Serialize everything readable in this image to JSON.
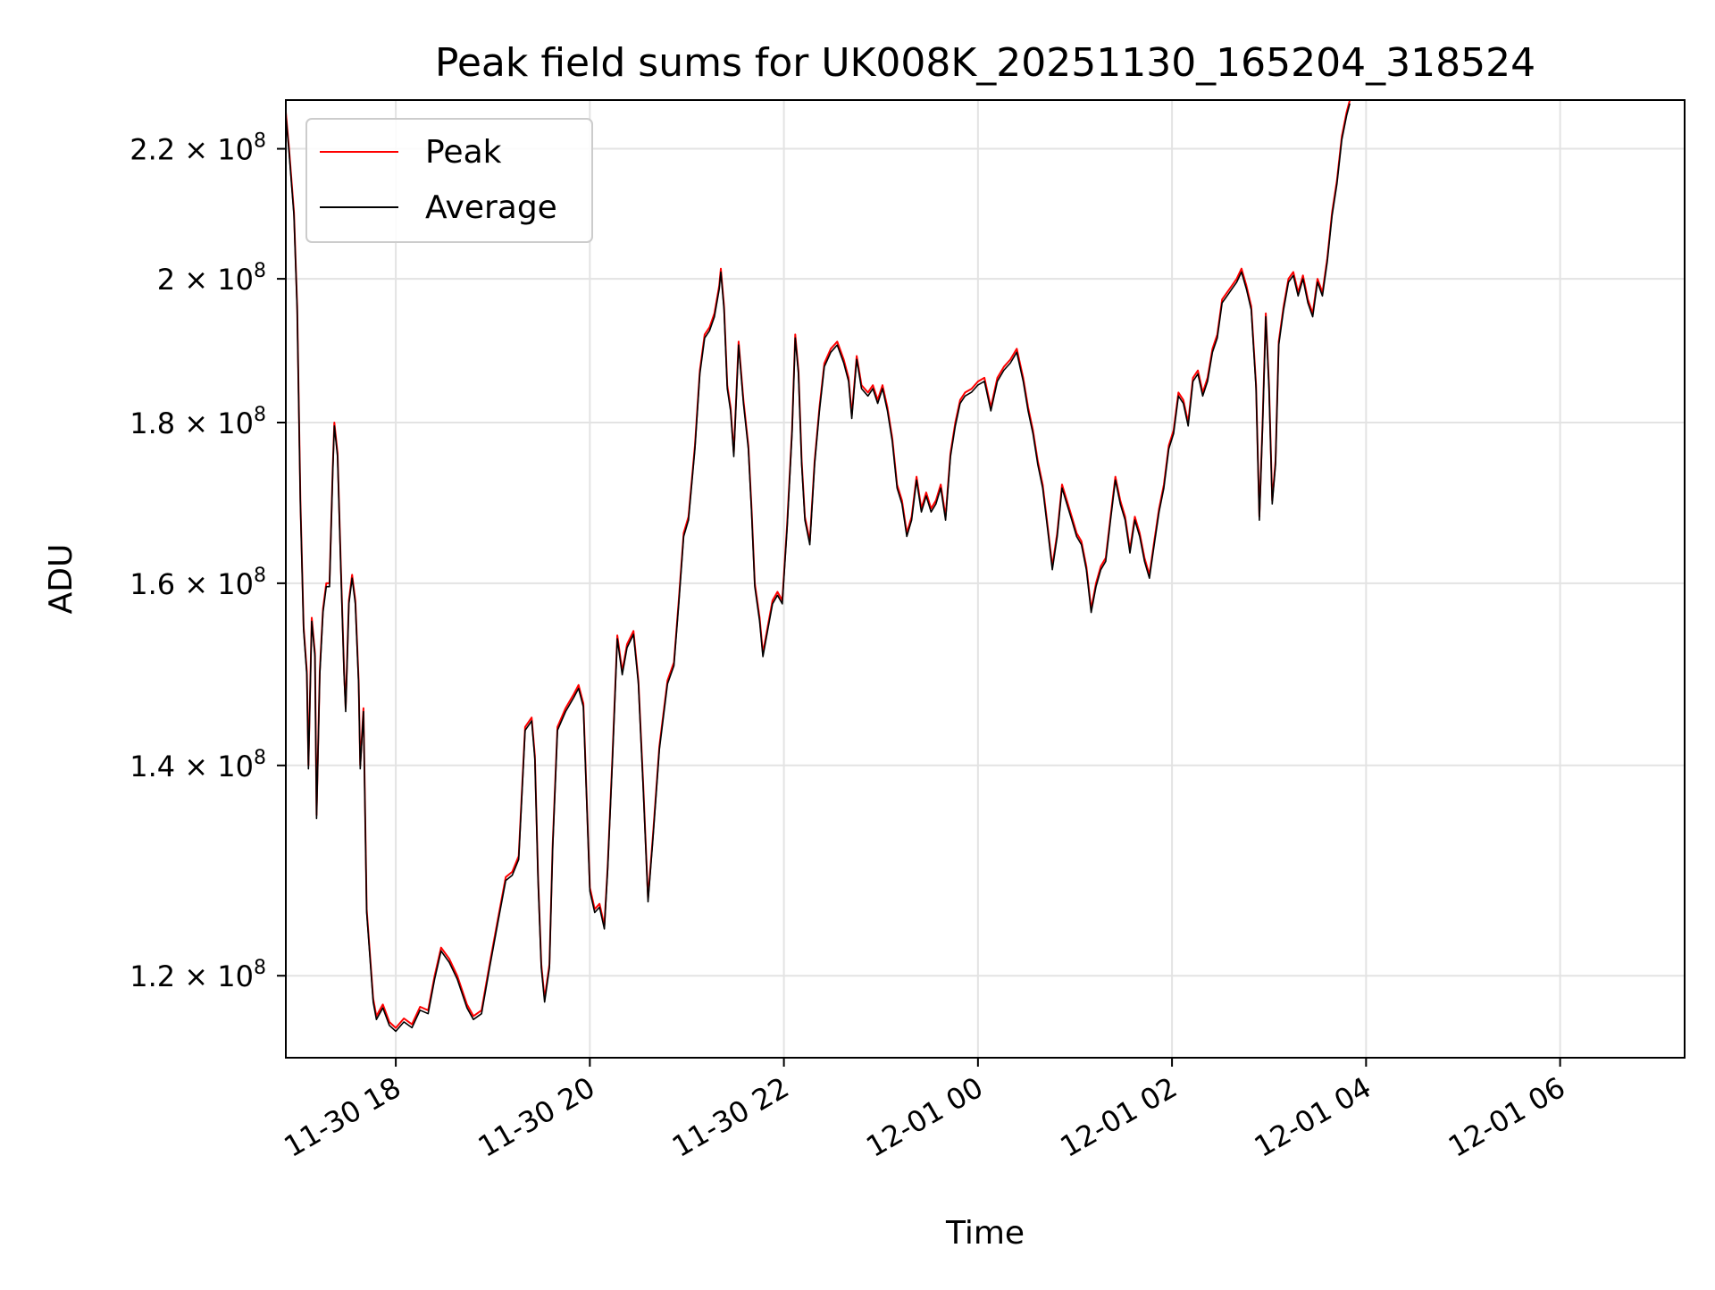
{
  "chart_data": {
    "type": "line",
    "title": "Peak field sums for UK008K_20251130_165204_318524",
    "xlabel": "Time",
    "ylabel": "ADU",
    "y_scale": "log",
    "grid": true,
    "legend_position": "top-left",
    "xlim": [
      "2025-11-30 16:52",
      "2025-12-01 07:17"
    ],
    "ylim": [
      113000000,
      228000000
    ],
    "x_ticks": [
      {
        "value": "2025-11-30 18:00",
        "label": "11-30 18"
      },
      {
        "value": "2025-11-30 20:00",
        "label": "11-30 20"
      },
      {
        "value": "2025-11-30 22:00",
        "label": "11-30 22"
      },
      {
        "value": "2025-12-01 00:00",
        "label": "12-01 00"
      },
      {
        "value": "2025-12-01 02:00",
        "label": "12-01 02"
      },
      {
        "value": "2025-12-01 04:00",
        "label": "12-01 04"
      },
      {
        "value": "2025-12-01 06:00",
        "label": "12-01 06"
      }
    ],
    "y_ticks": [
      {
        "value": 120000000,
        "mantissa": "1.2",
        "base": "10",
        "exp": "8"
      },
      {
        "value": 140000000,
        "mantissa": "1.4",
        "base": "10",
        "exp": "8"
      },
      {
        "value": 160000000,
        "mantissa": "1.6",
        "base": "10",
        "exp": "8"
      },
      {
        "value": 180000000,
        "mantissa": "1.8",
        "base": "10",
        "exp": "8"
      },
      {
        "value": 200000000,
        "mantissa": "2",
        "base": "10",
        "exp": "8"
      },
      {
        "value": 220000000,
        "mantissa": "2.2",
        "base": "10",
        "exp": "8"
      }
    ],
    "series": [
      {
        "name": "Peak",
        "color": "#ff0000",
        "points": [
          [
            "2025-11-30 16:52",
            226000000
          ],
          [
            "2025-11-30 16:54",
            220000000
          ],
          [
            "2025-11-30 16:57",
            210000000
          ],
          [
            "2025-11-30 16:59",
            196000000
          ],
          [
            "2025-11-30 17:01",
            170000000
          ],
          [
            "2025-11-30 17:03",
            155000000
          ],
          [
            "2025-11-30 17:05",
            150000000
          ],
          [
            "2025-11-30 17:06",
            140000000
          ],
          [
            "2025-11-30 17:08",
            156000000
          ],
          [
            "2025-11-30 17:10",
            152000000
          ],
          [
            "2025-11-30 17:11",
            135000000
          ],
          [
            "2025-11-30 17:13",
            150000000
          ],
          [
            "2025-11-30 17:15",
            157000000
          ],
          [
            "2025-11-30 17:17",
            160000000
          ],
          [
            "2025-11-30 17:19",
            160000000
          ],
          [
            "2025-11-30 17:21",
            174000000
          ],
          [
            "2025-11-30 17:22",
            180000000
          ],
          [
            "2025-11-30 17:24",
            176000000
          ],
          [
            "2025-11-30 17:26",
            162000000
          ],
          [
            "2025-11-30 17:28",
            150000000
          ],
          [
            "2025-11-30 17:29",
            146000000
          ],
          [
            "2025-11-30 17:31",
            158000000
          ],
          [
            "2025-11-30 17:33",
            161000000
          ],
          [
            "2025-11-30 17:35",
            158000000
          ],
          [
            "2025-11-30 17:37",
            149000000
          ],
          [
            "2025-11-30 17:38",
            140000000
          ],
          [
            "2025-11-30 17:40",
            146000000
          ],
          [
            "2025-11-30 17:42",
            126000000
          ],
          [
            "2025-11-30 17:44",
            122000000
          ],
          [
            "2025-11-30 17:46",
            118000000
          ],
          [
            "2025-11-30 17:48",
            116500000
          ],
          [
            "2025-11-30 17:52",
            117500000
          ],
          [
            "2025-11-30 17:56",
            116000000
          ],
          [
            "2025-11-30 18:00",
            115500000
          ],
          [
            "2025-11-30 18:05",
            116300000
          ],
          [
            "2025-11-30 18:10",
            115800000
          ],
          [
            "2025-11-30 18:15",
            117300000
          ],
          [
            "2025-11-30 18:20",
            117000000
          ],
          [
            "2025-11-30 18:24",
            120000000
          ],
          [
            "2025-11-30 18:28",
            122500000
          ],
          [
            "2025-11-30 18:33",
            121500000
          ],
          [
            "2025-11-30 18:38",
            120000000
          ],
          [
            "2025-11-30 18:44",
            117500000
          ],
          [
            "2025-11-30 18:48",
            116500000
          ],
          [
            "2025-11-30 18:53",
            117000000
          ],
          [
            "2025-11-30 18:58",
            121000000
          ],
          [
            "2025-11-30 19:03",
            125000000
          ],
          [
            "2025-11-30 19:08",
            129000000
          ],
          [
            "2025-11-30 19:12",
            129500000
          ],
          [
            "2025-11-30 19:16",
            131000000
          ],
          [
            "2025-11-30 19:20",
            144000000
          ],
          [
            "2025-11-30 19:24",
            145000000
          ],
          [
            "2025-11-30 19:26",
            141000000
          ],
          [
            "2025-11-30 19:28",
            129000000
          ],
          [
            "2025-11-30 19:30",
            121000000
          ],
          [
            "2025-11-30 19:32",
            118000000
          ],
          [
            "2025-11-30 19:35",
            121000000
          ],
          [
            "2025-11-30 19:37",
            132000000
          ],
          [
            "2025-11-30 19:40",
            144000000
          ],
          [
            "2025-11-30 19:45",
            146000000
          ],
          [
            "2025-11-30 19:50",
            147500000
          ],
          [
            "2025-11-30 19:53",
            148500000
          ],
          [
            "2025-11-30 19:56",
            146500000
          ],
          [
            "2025-11-30 19:58",
            137000000
          ],
          [
            "2025-11-30 20:00",
            128000000
          ],
          [
            "2025-11-30 20:03",
            126000000
          ],
          [
            "2025-11-30 20:06",
            126500000
          ],
          [
            "2025-11-30 20:09",
            124500000
          ],
          [
            "2025-11-30 20:11",
            130000000
          ],
          [
            "2025-11-30 20:14",
            141000000
          ],
          [
            "2025-11-30 20:17",
            154000000
          ],
          [
            "2025-11-30 20:20",
            150000000
          ],
          [
            "2025-11-30 20:23",
            153000000
          ],
          [
            "2025-11-30 20:27",
            154500000
          ],
          [
            "2025-11-30 20:30",
            149000000
          ],
          [
            "2025-11-30 20:33",
            138000000
          ],
          [
            "2025-11-30 20:36",
            127000000
          ],
          [
            "2025-11-30 20:39",
            133000000
          ],
          [
            "2025-11-30 20:43",
            142000000
          ],
          [
            "2025-11-30 20:48",
            149000000
          ],
          [
            "2025-11-30 20:52",
            151000000
          ],
          [
            "2025-11-30 20:55",
            158000000
          ],
          [
            "2025-11-30 20:58",
            166000000
          ],
          [
            "2025-11-30 21:01",
            168000000
          ],
          [
            "2025-11-30 21:05",
            177000000
          ],
          [
            "2025-11-30 21:08",
            187000000
          ],
          [
            "2025-11-30 21:11",
            192000000
          ],
          [
            "2025-11-30 21:14",
            193000000
          ],
          [
            "2025-11-30 21:17",
            195000000
          ],
          [
            "2025-11-30 21:20",
            199000000
          ],
          [
            "2025-11-30 21:21",
            201500000
          ],
          [
            "2025-11-30 21:23",
            196000000
          ],
          [
            "2025-11-30 21:25",
            185000000
          ],
          [
            "2025-11-30 21:27",
            182000000
          ],
          [
            "2025-11-30 21:29",
            176000000
          ],
          [
            "2025-11-30 21:32",
            191000000
          ],
          [
            "2025-11-30 21:35",
            183000000
          ],
          [
            "2025-11-30 21:38",
            177000000
          ],
          [
            "2025-11-30 21:40",
            169000000
          ],
          [
            "2025-11-30 21:42",
            160000000
          ],
          [
            "2025-11-30 21:45",
            156000000
          ],
          [
            "2025-11-30 21:47",
            152000000
          ],
          [
            "2025-11-30 21:50",
            155000000
          ],
          [
            "2025-11-30 21:53",
            158000000
          ],
          [
            "2025-11-30 21:56",
            159000000
          ],
          [
            "2025-11-30 21:59",
            158000000
          ],
          [
            "2025-11-30 22:02",
            167000000
          ],
          [
            "2025-11-30 22:05",
            179000000
          ],
          [
            "2025-11-30 22:07",
            192000000
          ],
          [
            "2025-11-30 22:09",
            187000000
          ],
          [
            "2025-11-30 22:11",
            175000000
          ],
          [
            "2025-11-30 22:13",
            168000000
          ],
          [
            "2025-11-30 22:16",
            165000000
          ],
          [
            "2025-11-30 22:19",
            175000000
          ],
          [
            "2025-11-30 22:22",
            182000000
          ],
          [
            "2025-11-30 22:25",
            188000000
          ],
          [
            "2025-11-30 22:29",
            190000000
          ],
          [
            "2025-11-30 22:33",
            191000000
          ],
          [
            "2025-11-30 22:37",
            188500000
          ],
          [
            "2025-11-30 22:40",
            186000000
          ],
          [
            "2025-11-30 22:42",
            181000000
          ],
          [
            "2025-11-30 22:45",
            189000000
          ],
          [
            "2025-11-30 22:48",
            185000000
          ],
          [
            "2025-11-30 22:52",
            184000000
          ],
          [
            "2025-11-30 22:55",
            185000000
          ],
          [
            "2025-11-30 22:58",
            183000000
          ],
          [
            "2025-11-30 23:01",
            185000000
          ],
          [
            "2025-11-30 23:04",
            182000000
          ],
          [
            "2025-11-30 23:07",
            178000000
          ],
          [
            "2025-11-30 23:10",
            172000000
          ],
          [
            "2025-11-30 23:13",
            170000000
          ],
          [
            "2025-11-30 23:16",
            166000000
          ],
          [
            "2025-11-30 23:19",
            168000000
          ],
          [
            "2025-11-30 23:22",
            173000000
          ],
          [
            "2025-11-30 23:25",
            169000000
          ],
          [
            "2025-11-30 23:28",
            171000000
          ],
          [
            "2025-11-30 23:31",
            169000000
          ],
          [
            "2025-11-30 23:34",
            170000000
          ],
          [
            "2025-11-30 23:37",
            172000000
          ],
          [
            "2025-11-30 23:40",
            168000000
          ],
          [
            "2025-11-30 23:43",
            176000000
          ],
          [
            "2025-11-30 23:46",
            180000000
          ],
          [
            "2025-11-30 23:49",
            183000000
          ],
          [
            "2025-11-30 23:52",
            184000000
          ],
          [
            "2025-11-30 23:56",
            184500000
          ],
          [
            "2025-12-01 00:00",
            185500000
          ],
          [
            "2025-12-01 00:04",
            186000000
          ],
          [
            "2025-12-01 00:08",
            182000000
          ],
          [
            "2025-12-01 00:12",
            186000000
          ],
          [
            "2025-12-01 00:16",
            187500000
          ],
          [
            "2025-12-01 00:20",
            188500000
          ],
          [
            "2025-12-01 00:24",
            190000000
          ],
          [
            "2025-12-01 00:28",
            186000000
          ],
          [
            "2025-12-01 00:31",
            182000000
          ],
          [
            "2025-12-01 00:34",
            179000000
          ],
          [
            "2025-12-01 00:37",
            175000000
          ],
          [
            "2025-12-01 00:40",
            172000000
          ],
          [
            "2025-12-01 00:43",
            167000000
          ],
          [
            "2025-12-01 00:46",
            162000000
          ],
          [
            "2025-12-01 00:49",
            166000000
          ],
          [
            "2025-12-01 00:52",
            172000000
          ],
          [
            "2025-12-01 00:55",
            170000000
          ],
          [
            "2025-12-01 00:58",
            168000000
          ],
          [
            "2025-12-01 01:01",
            166000000
          ],
          [
            "2025-12-01 01:04",
            165000000
          ],
          [
            "2025-12-01 01:07",
            162000000
          ],
          [
            "2025-12-01 01:10",
            157000000
          ],
          [
            "2025-12-01 01:13",
            160000000
          ],
          [
            "2025-12-01 01:16",
            162000000
          ],
          [
            "2025-12-01 01:19",
            163000000
          ],
          [
            "2025-12-01 01:22",
            168000000
          ],
          [
            "2025-12-01 01:25",
            173000000
          ],
          [
            "2025-12-01 01:28",
            170000000
          ],
          [
            "2025-12-01 01:31",
            168000000
          ],
          [
            "2025-12-01 01:34",
            164000000
          ],
          [
            "2025-12-01 01:37",
            168000000
          ],
          [
            "2025-12-01 01:40",
            166000000
          ],
          [
            "2025-12-01 01:43",
            163000000
          ],
          [
            "2025-12-01 01:46",
            161000000
          ],
          [
            "2025-12-01 01:49",
            165000000
          ],
          [
            "2025-12-01 01:52",
            169000000
          ],
          [
            "2025-12-01 01:55",
            172000000
          ],
          [
            "2025-12-01 01:58",
            177000000
          ],
          [
            "2025-12-01 02:01",
            179000000
          ],
          [
            "2025-12-01 02:04",
            184000000
          ],
          [
            "2025-12-01 02:07",
            183000000
          ],
          [
            "2025-12-01 02:10",
            180000000
          ],
          [
            "2025-12-01 02:13",
            186000000
          ],
          [
            "2025-12-01 02:16",
            187000000
          ],
          [
            "2025-12-01 02:19",
            184000000
          ],
          [
            "2025-12-01 02:22",
            186000000
          ],
          [
            "2025-12-01 02:25",
            190000000
          ],
          [
            "2025-12-01 02:28",
            192000000
          ],
          [
            "2025-12-01 02:31",
            197000000
          ],
          [
            "2025-12-01 02:34",
            198000000
          ],
          [
            "2025-12-01 02:37",
            199000000
          ],
          [
            "2025-12-01 02:40",
            200000000
          ],
          [
            "2025-12-01 02:43",
            201500000
          ],
          [
            "2025-12-01 02:46",
            199000000
          ],
          [
            "2025-12-01 02:49",
            196000000
          ],
          [
            "2025-12-01 02:52",
            185000000
          ],
          [
            "2025-12-01 02:54",
            168000000
          ],
          [
            "2025-12-01 02:56",
            180000000
          ],
          [
            "2025-12-01 02:58",
            195000000
          ],
          [
            "2025-12-01 03:00",
            185000000
          ],
          [
            "2025-12-01 03:02",
            170000000
          ],
          [
            "2025-12-01 03:04",
            175000000
          ],
          [
            "2025-12-01 03:06",
            191000000
          ],
          [
            "2025-12-01 03:09",
            196000000
          ],
          [
            "2025-12-01 03:12",
            200000000
          ],
          [
            "2025-12-01 03:15",
            201000000
          ],
          [
            "2025-12-01 03:18",
            198000000
          ],
          [
            "2025-12-01 03:21",
            200500000
          ],
          [
            "2025-12-01 03:24",
            197000000
          ],
          [
            "2025-12-01 03:27",
            195000000
          ],
          [
            "2025-12-01 03:30",
            200000000
          ],
          [
            "2025-12-01 03:33",
            198000000
          ],
          [
            "2025-12-01 03:36",
            203000000
          ],
          [
            "2025-12-01 03:39",
            210000000
          ],
          [
            "2025-12-01 03:42",
            215000000
          ],
          [
            "2025-12-01 03:45",
            222000000
          ],
          [
            "2025-12-01 03:48",
            226000000
          ],
          [
            "2025-12-01 03:50",
            228000000
          ]
        ]
      },
      {
        "name": "Average",
        "color": "#000000",
        "points": []
      }
    ]
  }
}
